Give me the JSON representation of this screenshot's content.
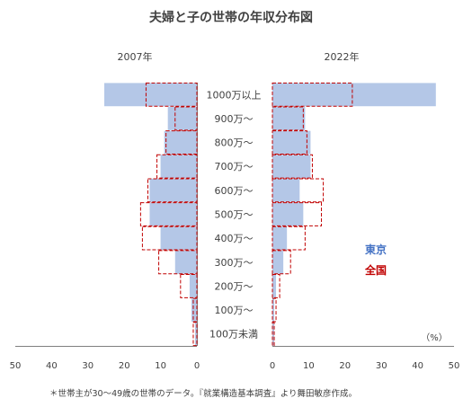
{
  "chart_data": {
    "type": "bar",
    "title": "夫婦と子の世帯の年収分布図",
    "unit_label": "（%）",
    "note": "＊世帯主が30～49歳の世帯のデータ。『就業構造基本調査』より舞田敏彦作成。",
    "categories": [
      "100万未満",
      "100万～",
      "200万～",
      "300万～",
      "400万～",
      "500万～",
      "600万～",
      "700万～",
      "800万～",
      "900万～",
      "1000万以上"
    ],
    "x_ticks": [
      50,
      40,
      30,
      20,
      10,
      0
    ],
    "xlim": [
      0,
      50
    ],
    "legend": [
      {
        "label": "東京",
        "color": "#4472C4"
      },
      {
        "label": "全国",
        "color": "#C00000"
      }
    ],
    "panels": [
      {
        "year_label": "2007年",
        "side": "left",
        "series": [
          {
            "name": "東京",
            "values": [
              0.5,
              1.5,
              2.0,
              6.0,
              10.0,
              13.0,
              13.0,
              10.0,
              9.0,
              8.0,
              25.5
            ]
          },
          {
            "name": "全国",
            "values": [
              1.0,
              1.0,
              4.5,
              10.5,
              15.0,
              15.5,
              13.5,
              11.0,
              8.5,
              6.0,
              14.0
            ]
          }
        ]
      },
      {
        "year_label": "2022年",
        "side": "right",
        "series": [
          {
            "name": "東京",
            "values": [
              0.5,
              0.5,
              1.0,
              3.0,
              4.0,
              8.5,
              7.5,
              10.5,
              10.5,
              9.0,
              45.0
            ]
          },
          {
            "name": "全国",
            "values": [
              0.5,
              1.0,
              2.0,
              5.0,
              9.0,
              13.5,
              14.0,
              11.0,
              9.5,
              8.5,
              22.0
            ]
          }
        ]
      }
    ]
  }
}
